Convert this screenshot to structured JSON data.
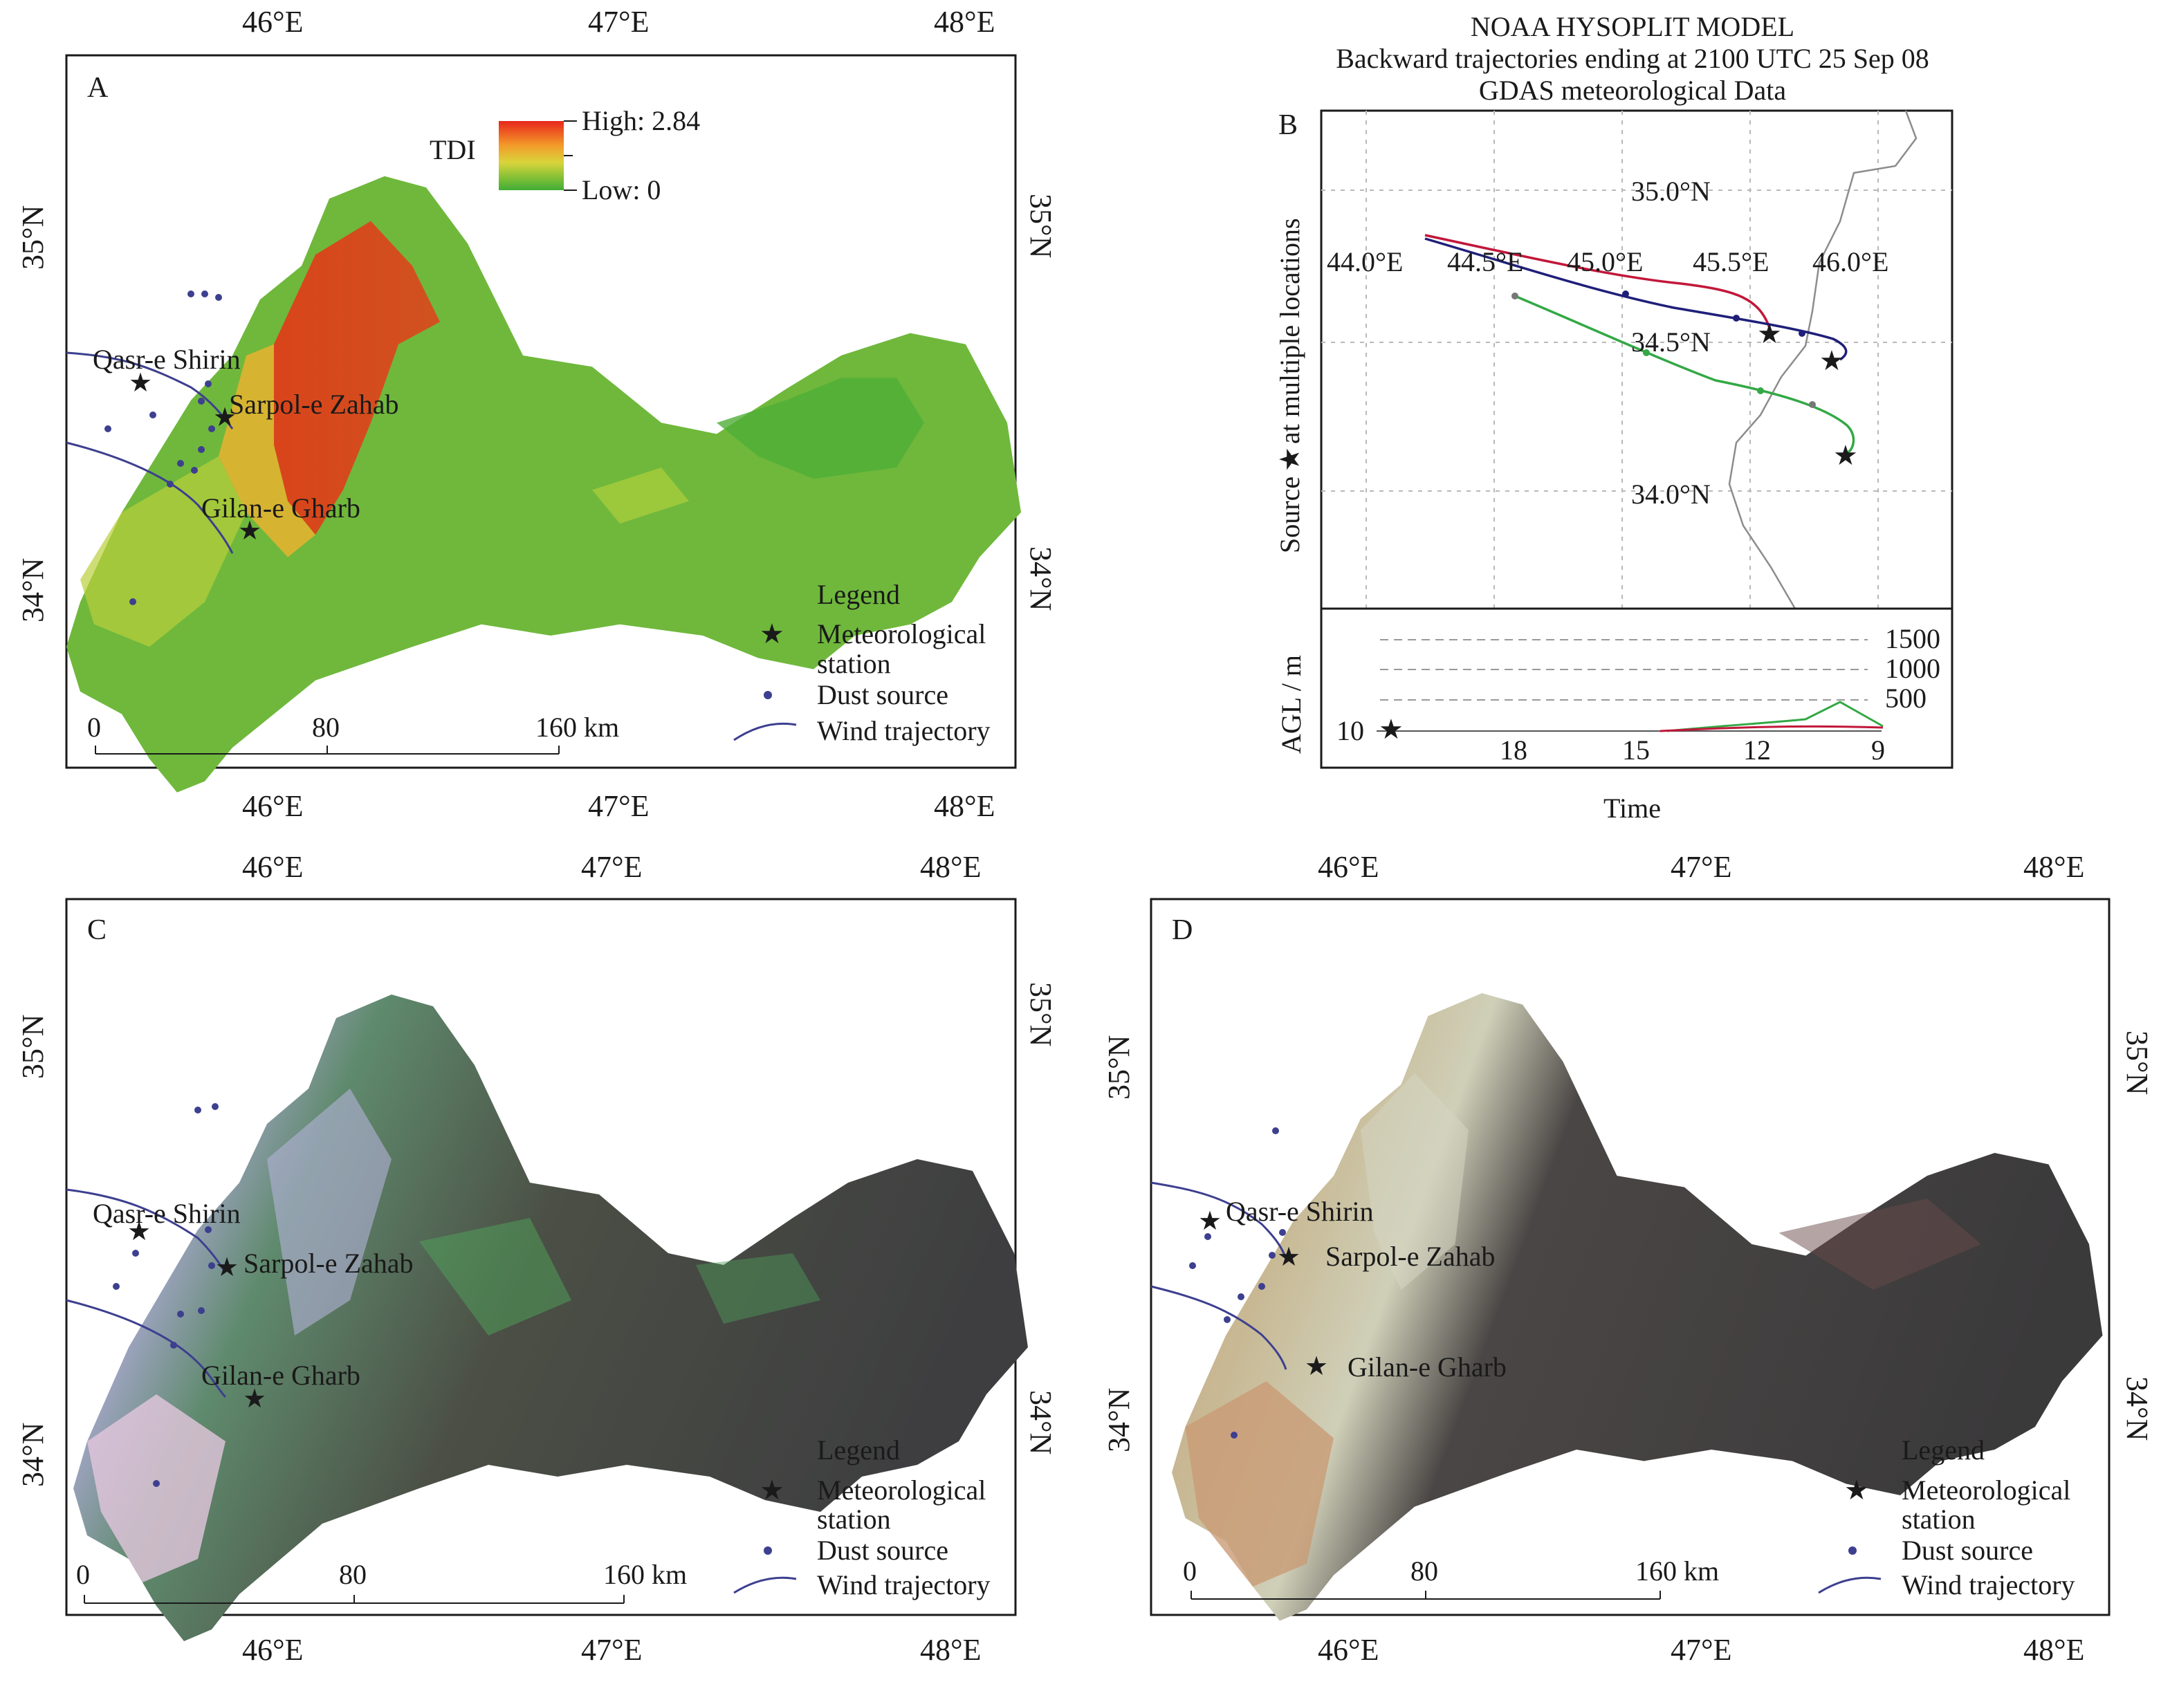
{
  "panels": {
    "A": {
      "label": "A",
      "top_ticks": [
        "46°E",
        "47°E",
        "48°E"
      ],
      "bottom_ticks": [
        "46°E",
        "47°E",
        "48°E"
      ],
      "left_ticks": [
        "35°N",
        "34°N"
      ],
      "right_ticks": [
        "35°N",
        "34°N"
      ],
      "cities": [
        "Qasr-e Shirin",
        "Sarpol-e Zahab",
        "Gilan-e Gharb"
      ],
      "colorbar": {
        "title": "TDI",
        "high": "High: 2.84",
        "low": "Low: 0",
        "high_color": "#e8261b",
        "low_color": "#3fae35"
      },
      "legend": {
        "title": "Legend",
        "station_1": "Meteorological",
        "station_2": "station",
        "dust": "Dust source",
        "wind": "Wind trajectory"
      },
      "scale": {
        "z": "0",
        "m": "80",
        "e": "160 km"
      }
    },
    "B": {
      "label": "B",
      "title": [
        "NOAA HYSOPLIT MODEL",
        "Backward trajectories ending at 2100 UTC 25 Sep 08",
        "GDAS meteorological Data"
      ],
      "lon_labels": [
        "44.0°E",
        "44.5°E",
        "45.0°E",
        "45.5°E",
        "46.0°E"
      ],
      "lat_labels": [
        "35.0°N",
        "34.5°N",
        "34.0°N"
      ],
      "ylabel_left": "Source",
      "ylabel_right": "at multiple locations",
      "height_label": "AGL / m",
      "height_ticks": [
        "1500",
        "1000",
        "500"
      ],
      "height_base": "10",
      "time_ticks": [
        "18",
        "15",
        "12",
        "9"
      ],
      "xlabel": "Time",
      "traj_colors": [
        "#c2173a",
        "#1f1f7a",
        "#33a845"
      ]
    },
    "C": {
      "label": "C",
      "top_ticks": [
        "46°E",
        "47°E",
        "48°E"
      ],
      "bottom_ticks": [
        "46°E",
        "47°E",
        "48°E"
      ],
      "left_ticks": [
        "35°N",
        "34°N"
      ],
      "right_ticks": [
        "35°N",
        "34°N"
      ],
      "cities": [
        "Qasr-e Shirin",
        "Sarpol-e Zahab",
        "Gilan-e Gharb"
      ],
      "legend": {
        "title": "Legend",
        "station_1": "Meteorological",
        "station_2": "station",
        "dust": "Dust source",
        "wind": "Wind trajectory"
      },
      "scale": {
        "z": "0",
        "m": "80",
        "e": "160 km"
      }
    },
    "D": {
      "label": "D",
      "top_ticks": [
        "46°E",
        "47°E",
        "48°E"
      ],
      "bottom_ticks": [
        "46°E",
        "47°E",
        "48°E"
      ],
      "left_ticks": [
        "35°N",
        "34°N"
      ],
      "right_ticks": [
        "35°N",
        "34°N"
      ],
      "cities": [
        "Qasr-e Shirin",
        "Sarpol-e Zahab",
        "Gilan-e Gharb"
      ],
      "legend": {
        "title": "Legend",
        "station_1": "Meteorological",
        "station_2": "station",
        "dust": "Dust source",
        "wind": "Wind trajectory"
      },
      "scale": {
        "z": "0",
        "m": "80",
        "e": "160 km"
      }
    }
  },
  "colors": {
    "dust_dot": "#3d3f8f",
    "trajectory": "#3d3f8f",
    "star": "#111111"
  }
}
